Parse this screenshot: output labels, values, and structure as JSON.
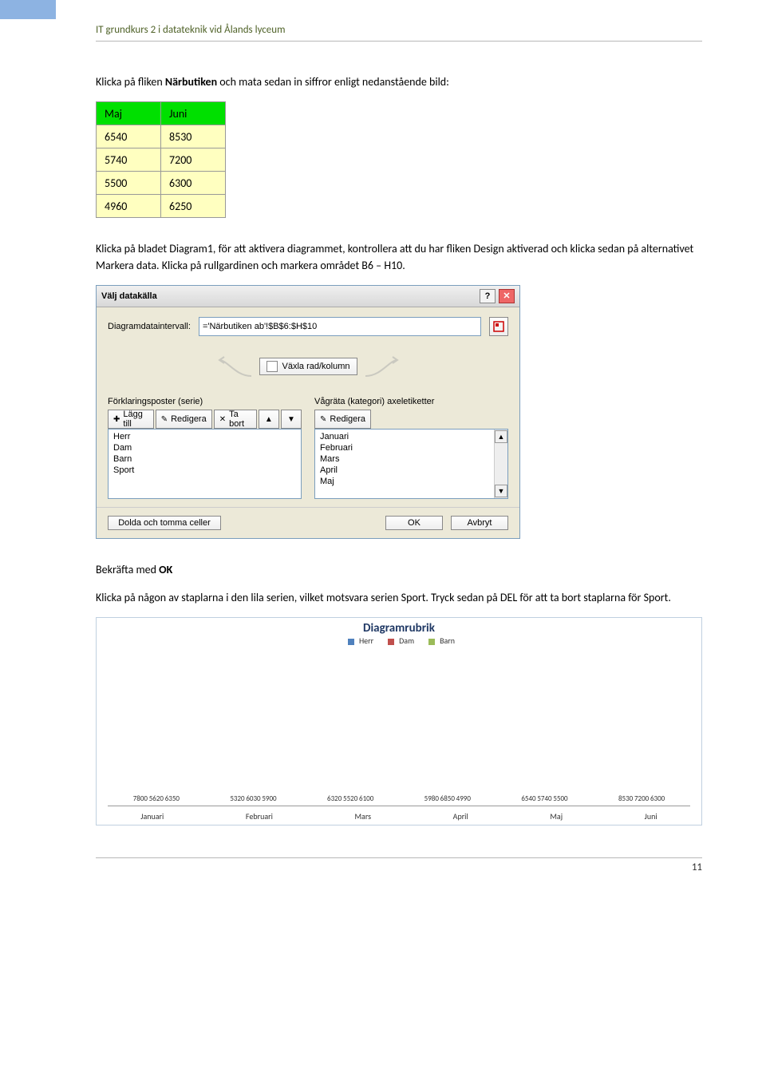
{
  "header": {
    "title": "IT grundkurs 2 i datateknik vid Ålands lyceum"
  },
  "paragraphs": {
    "p1_a": "Klicka på fliken ",
    "p1_b": "Närbutiken",
    "p1_c": " och mata sedan in siffror enligt nedanstående bild:",
    "p2": "Klicka på bladet Diagram1, för att aktivera diagrammet, kontrollera att du har fliken Design aktiverad och klicka sedan på alternativet Markera data. Klicka på rullgardinen och markera området B6 – H10.",
    "p3_a": "Bekräfta med ",
    "p3_b": "OK",
    "p4": "Klicka på någon av staplarna i den lila serien, vilket motsvara serien Sport. Tryck sedan på DEL för att ta bort staplarna för Sport."
  },
  "table": {
    "columns": [
      "Maj",
      "Juni"
    ],
    "rows": [
      [
        "6540",
        "8530"
      ],
      [
        "5740",
        "7200"
      ],
      [
        "5500",
        "6300"
      ],
      [
        "4960",
        "6250"
      ]
    ],
    "header_bg": "#00e000",
    "cell_bg": "#ffffc0"
  },
  "dialog": {
    "title": "Välj datakälla",
    "help_sym": "?",
    "close_sym": "✕",
    "range_label": "Diagramdataintervall:",
    "range_value": "='Närbutiken ab'!$B$6:$H$10",
    "switch_label": "Växla rad/kolumn",
    "left": {
      "header": "Förklaringsposter (serie)",
      "add_label": "Lägg till",
      "edit_label": "Redigera",
      "remove_label": "Ta bort",
      "up_sym": "▲",
      "down_sym": "▼",
      "pencil_sym": "✎",
      "new_sym": "✚",
      "x_sym": "✕",
      "items": [
        "Herr",
        "Dam",
        "Barn",
        "Sport"
      ]
    },
    "right": {
      "header": "Vågräta (kategori) axeletiketter",
      "edit_label": "Redigera",
      "pencil_sym": "✎",
      "items": [
        "Januari",
        "Februari",
        "Mars",
        "April",
        "Maj"
      ],
      "scroll_up": "▲",
      "scroll_down": "▼"
    },
    "footer": {
      "hidden_label": "Dolda och tomma celler",
      "ok_label": "OK",
      "cancel_label": "Avbryt"
    }
  },
  "chart": {
    "title": "Diagramrubrik",
    "legend": [
      "Herr",
      "Dam",
      "Barn"
    ],
    "series_colors": [
      "#4f81bd",
      "#c0504d",
      "#9bbb59"
    ],
    "y_max": 8600,
    "categories": [
      "Januari",
      "Februari",
      "Mars",
      "April",
      "Maj",
      "Juni"
    ],
    "groups": [
      [
        7800,
        5620,
        6350
      ],
      [
        5320,
        6030,
        5900
      ],
      [
        6320,
        5520,
        6100
      ],
      [
        5980,
        6850,
        4990
      ],
      [
        6540,
        5740,
        5500
      ],
      [
        8530,
        7200,
        6300
      ]
    ]
  },
  "footer": {
    "page_number": "11"
  }
}
